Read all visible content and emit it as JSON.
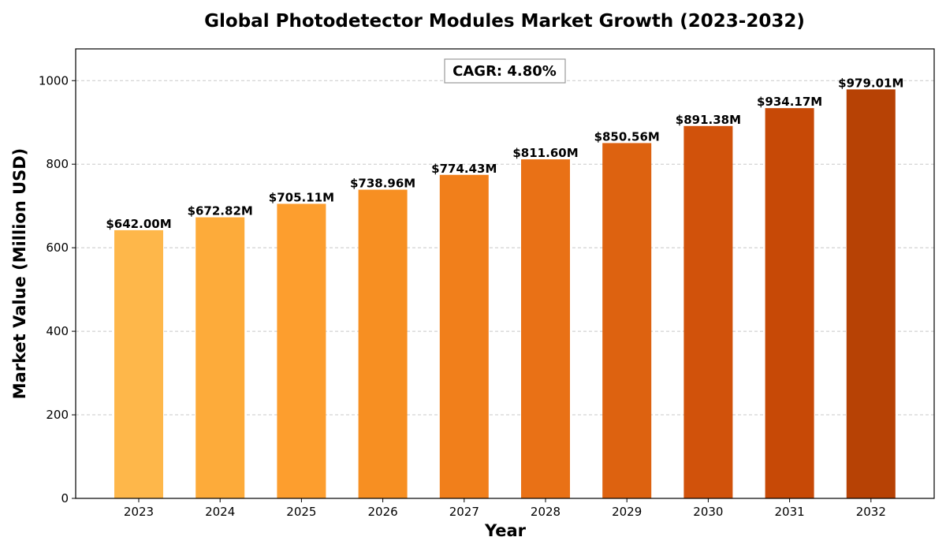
{
  "chart_data": {
    "type": "bar",
    "title": "Global Photodetector Modules Market Growth (2023-2032)",
    "xlabel": "Year",
    "ylabel": "Market Value (Million USD)",
    "categories": [
      "2023",
      "2024",
      "2025",
      "2026",
      "2027",
      "2028",
      "2029",
      "2030",
      "2031",
      "2032"
    ],
    "values": [
      642.0,
      672.82,
      705.11,
      738.96,
      774.43,
      811.6,
      850.56,
      891.38,
      934.17,
      979.01
    ],
    "data_labels": [
      "$642.00M",
      "$672.82M",
      "$705.11M",
      "$738.96M",
      "$774.43M",
      "$811.60M",
      "$850.56M",
      "$891.38M",
      "$934.17M",
      "$979.01M"
    ],
    "bar_colors": [
      "#FEB74A",
      "#FDAB3A",
      "#FD9E2E",
      "#F78F22",
      "#F17F1B",
      "#E97116",
      "#DD6210",
      "#D1520B",
      "#C74906",
      "#B74205"
    ],
    "ylim": [
      0,
      1076
    ],
    "yticks": [
      0,
      200,
      400,
      600,
      800,
      1000
    ],
    "grid": "y-dashed",
    "annotation": "CAGR: 4.80%"
  }
}
